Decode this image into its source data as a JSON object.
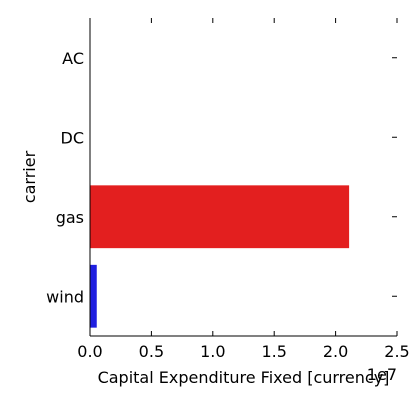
{
  "chart_data": {
    "type": "bar",
    "orientation": "horizontal",
    "categories": [
      "AC",
      "DC",
      "gas",
      "wind"
    ],
    "values": [
      0,
      0,
      21100000,
      550000
    ],
    "colors": [
      "#1f1fe0",
      "#1f1fe0",
      "#e31f1f",
      "#1f1fe0"
    ],
    "xlabel": "Capital Expenditure Fixed [currency]",
    "ylabel": "carrier",
    "xlim": [
      0,
      25000000
    ],
    "x_ticks": [
      0,
      5000000,
      10000000,
      15000000,
      20000000,
      25000000
    ],
    "x_tick_labels": [
      "0.0",
      "0.5",
      "1.0",
      "1.5",
      "2.0",
      "2.5"
    ],
    "x_offset_label": "1e7",
    "grid": false,
    "legend": "none"
  }
}
